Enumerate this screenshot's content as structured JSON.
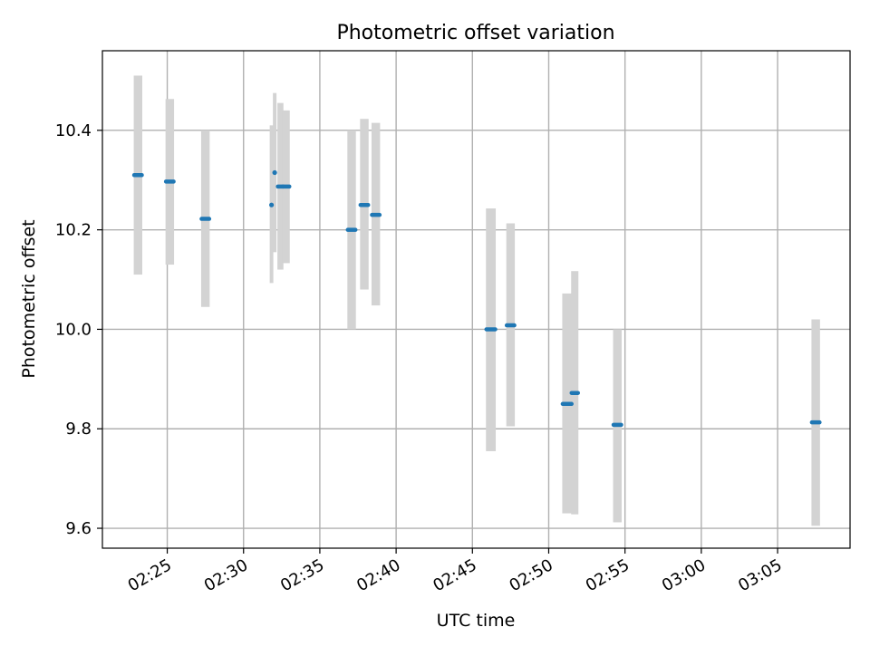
{
  "chart_data": {
    "type": "scatter",
    "title": "Photometric offset variation",
    "xlabel": "UTC time",
    "ylabel": "Photometric offset",
    "xlim": [
      "02:20:45",
      "03:09:45"
    ],
    "ylim": [
      9.56,
      10.56
    ],
    "xticks": [
      "02:25",
      "02:30",
      "02:35",
      "02:40",
      "02:45",
      "02:50",
      "02:55",
      "03:00",
      "03:05"
    ],
    "yticks": [
      "9.6",
      "9.8",
      "10.0",
      "10.2",
      "10.4"
    ],
    "grid": true,
    "legend": "none",
    "colors": {
      "point": "#1f77b4",
      "error_bar": "#d3d3d3",
      "grid": "#b0b0b0"
    },
    "points": [
      {
        "t_start": "02:22:50",
        "t_end": "02:23:20",
        "y": 10.31,
        "y_low": 10.11,
        "y_high": 10.51
      },
      {
        "t_start": "02:24:55",
        "t_end": "02:25:25",
        "y": 10.297,
        "y_low": 10.13,
        "y_high": 10.463
      },
      {
        "t_start": "02:27:15",
        "t_end": "02:27:45",
        "y": 10.222,
        "y_low": 10.045,
        "y_high": 10.4
      },
      {
        "t_start": "02:31:45",
        "t_end": "02:31:55",
        "y": 10.25,
        "y_low": 10.093,
        "y_high": 10.41
      },
      {
        "t_start": "02:32:00",
        "t_end": "02:32:05",
        "y": 10.315,
        "y_low": 10.155,
        "y_high": 10.475
      },
      {
        "t_start": "02:32:15",
        "t_end": "02:32:35",
        "y": 10.287,
        "y_low": 10.12,
        "y_high": 10.455
      },
      {
        "t_start": "02:32:35",
        "t_end": "02:33:00",
        "y": 10.287,
        "y_low": 10.133,
        "y_high": 10.44
      },
      {
        "t_start": "02:36:50",
        "t_end": "02:37:20",
        "y": 10.2,
        "y_low": 10.0,
        "y_high": 10.4
      },
      {
        "t_start": "02:37:40",
        "t_end": "02:38:10",
        "y": 10.25,
        "y_low": 10.08,
        "y_high": 10.423
      },
      {
        "t_start": "02:38:25",
        "t_end": "02:38:55",
        "y": 10.23,
        "y_low": 10.048,
        "y_high": 10.415
      },
      {
        "t_start": "02:45:55",
        "t_end": "02:46:30",
        "y": 10.0,
        "y_low": 9.755,
        "y_high": 10.243
      },
      {
        "t_start": "02:47:15",
        "t_end": "02:47:45",
        "y": 10.008,
        "y_low": 9.805,
        "y_high": 10.213
      },
      {
        "t_start": "02:50:55",
        "t_end": "02:51:30",
        "y": 9.85,
        "y_low": 9.63,
        "y_high": 10.072
      },
      {
        "t_start": "02:51:30",
        "t_end": "02:51:55",
        "y": 9.872,
        "y_low": 9.628,
        "y_high": 10.117
      },
      {
        "t_start": "02:54:15",
        "t_end": "02:54:45",
        "y": 9.808,
        "y_low": 9.612,
        "y_high": 10.0
      },
      {
        "t_start": "03:07:15",
        "t_end": "03:07:45",
        "y": 9.813,
        "y_low": 9.605,
        "y_high": 10.02
      }
    ]
  }
}
